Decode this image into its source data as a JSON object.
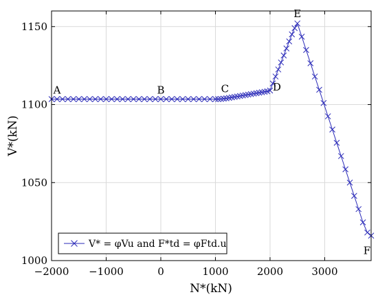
{
  "chart_data": {
    "type": "line",
    "xlabel": "N*(kN)",
    "ylabel": "V*(kN)",
    "xlim": [
      -2000,
      3850
    ],
    "ylim": [
      1000,
      1160
    ],
    "xticks": [
      -2000,
      -1000,
      0,
      1000,
      2000,
      3000
    ],
    "yticks": [
      1000,
      1050,
      1100,
      1150
    ],
    "xtick_labels": [
      "−2000",
      "−1000",
      "0",
      "1000",
      "2000",
      "3000"
    ],
    "ytick_labels": [
      "1000",
      "1050",
      "1100",
      "1150"
    ],
    "grid": true,
    "legend_position": "bottom-left",
    "series": [
      {
        "name": "V* = φVu and F*td = φFtd.u",
        "color": "#2a2ab8",
        "marker": "x",
        "x": [
          -2000,
          -1900,
          -1800,
          -1700,
          -1600,
          -1500,
          -1400,
          -1300,
          -1200,
          -1100,
          -1000,
          -900,
          -800,
          -700,
          -600,
          -500,
          -400,
          -300,
          -200,
          -100,
          0,
          100,
          200,
          300,
          400,
          500,
          600,
          700,
          800,
          900,
          1000,
          1050,
          1100,
          1150,
          1200,
          1250,
          1300,
          1350,
          1400,
          1450,
          1500,
          1550,
          1600,
          1650,
          1700,
          1750,
          1800,
          1850,
          1900,
          1950,
          2000,
          2050,
          2100,
          2150,
          2200,
          2250,
          2300,
          2350,
          2400,
          2450,
          2500,
          2580,
          2660,
          2740,
          2820,
          2900,
          2980,
          3060,
          3140,
          3220,
          3300,
          3380,
          3460,
          3540,
          3620,
          3700,
          3780,
          3850
        ],
        "y": [
          1103.5,
          1103.5,
          1103.5,
          1103.5,
          1103.5,
          1103.5,
          1103.5,
          1103.5,
          1103.5,
          1103.5,
          1103.5,
          1103.5,
          1103.5,
          1103.5,
          1103.5,
          1103.5,
          1103.5,
          1103.5,
          1103.5,
          1103.5,
          1103.5,
          1103.5,
          1103.5,
          1103.5,
          1103.5,
          1103.5,
          1103.5,
          1103.5,
          1103.5,
          1103.5,
          1103.5,
          1103.5,
          1103.6,
          1103.8,
          1104.0,
          1104.3,
          1104.6,
          1104.9,
          1105.2,
          1105.5,
          1105.8,
          1106.1,
          1106.4,
          1106.7,
          1107.0,
          1107.3,
          1107.6,
          1107.9,
          1108.2,
          1108.5,
          1109.0,
          1113.5,
          1118.0,
          1122.5,
          1127.0,
          1131.5,
          1136.0,
          1140.5,
          1145.0,
          1149.0,
          1152.0,
          1143.5,
          1135.0,
          1126.5,
          1118.0,
          1109.5,
          1101.0,
          1092.5,
          1084.0,
          1075.5,
          1067.0,
          1058.5,
          1050.0,
          1041.5,
          1033.0,
          1024.5,
          1018.0,
          1016.0
        ]
      }
    ],
    "annotations": [
      {
        "text": "A",
        "x": -2000,
        "y": 1103.5
      },
      {
        "text": "B",
        "x": 0,
        "y": 1103.5
      },
      {
        "text": "C",
        "x": 1250,
        "y": 1104.3
      },
      {
        "text": "D",
        "x": 2000,
        "y": 1109.0
      },
      {
        "text": "E",
        "x": 2500,
        "y": 1152.0
      },
      {
        "text": "F",
        "x": 3850,
        "y": 1016.0
      }
    ]
  }
}
